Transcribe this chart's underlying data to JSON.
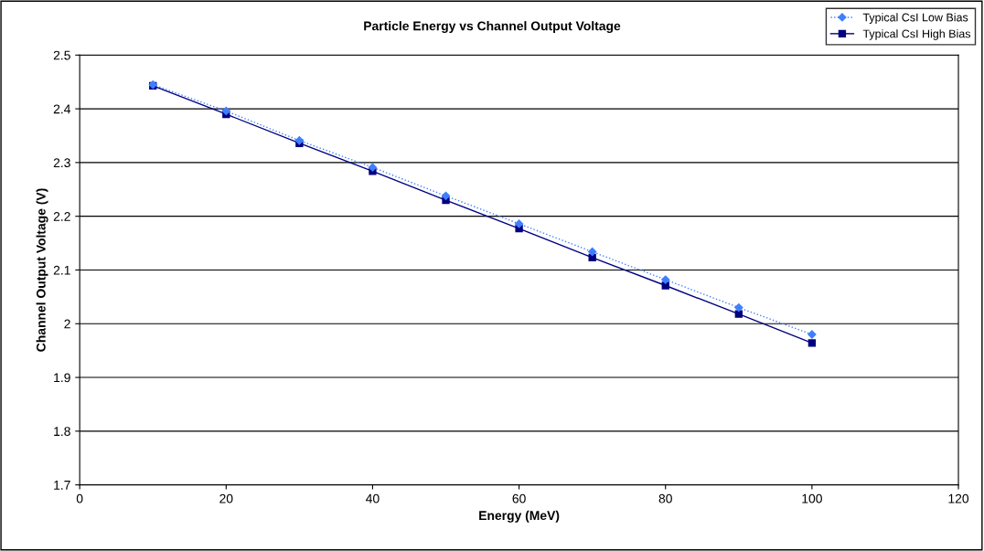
{
  "chart_data": {
    "type": "line",
    "title": "Particle Energy vs Channel Output Voltage",
    "xlabel": "Energy (MeV)",
    "ylabel": "Channel Output Voltage (V)",
    "x": [
      10,
      20,
      30,
      40,
      50,
      60,
      70,
      80,
      90,
      100
    ],
    "series": [
      {
        "name": "Typical CsI Low Bias",
        "color": "#3f7fff",
        "marker": "diamond",
        "line_style": "dotted",
        "values": [
          2.445,
          2.396,
          2.341,
          2.291,
          2.238,
          2.186,
          2.134,
          2.082,
          2.03,
          1.98
        ]
      },
      {
        "name": "Typical CsI High Bias",
        "color": "#000080",
        "marker": "square",
        "line_style": "solid",
        "values": [
          2.443,
          2.39,
          2.336,
          2.284,
          2.23,
          2.177,
          2.123,
          2.071,
          2.018,
          1.964
        ]
      }
    ],
    "xlim": [
      0,
      120
    ],
    "xticks": [
      0,
      20,
      40,
      60,
      80,
      100,
      120
    ],
    "ylim": [
      1.7,
      2.5
    ],
    "yticks": [
      1.7,
      1.8,
      1.9,
      2,
      2.1,
      2.2,
      2.3,
      2.4,
      2.5
    ],
    "grid": "y",
    "legend": "top right"
  }
}
